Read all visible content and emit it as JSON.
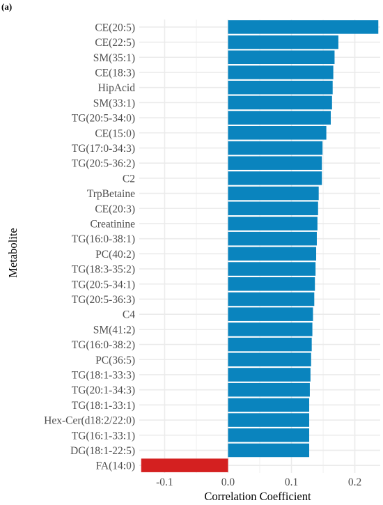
{
  "panel_label": "(a)",
  "chart_data": {
    "type": "bar",
    "orientation": "horizontal",
    "title": "",
    "xlabel": "Correlation Coefficient",
    "ylabel": "Metabolite",
    "xlim": [
      -0.14,
      0.24
    ],
    "xticks": [
      -0.1,
      0.0,
      0.1,
      0.2
    ],
    "xtick_labels": [
      "-0.1",
      "0.0",
      "0.1",
      "0.2"
    ],
    "grid": true,
    "legend": "none",
    "colors": {
      "positive": "#0a84be",
      "negative": "#d42020",
      "grid": "#ebebeb"
    },
    "categories": [
      "CE(20:5)",
      "CE(22:5)",
      "SM(35:1)",
      "CE(18:3)",
      "HipAcid",
      "SM(33:1)",
      "TG(20:5-34:0)",
      "CE(15:0)",
      "TG(17:0-34:3)",
      "TG(20:5-36:2)",
      "C2",
      "TrpBetaine",
      "CE(20:3)",
      "Creatinine",
      "TG(16:0-38:1)",
      "PC(40:2)",
      "TG(18:3-35:2)",
      "TG(20:5-34:1)",
      "TG(20:5-36:3)",
      "C4",
      "SM(41:2)",
      "TG(16:0-38:2)",
      "PC(36:5)",
      "TG(18:1-33:3)",
      "TG(20:1-34:3)",
      "TG(18:1-33:1)",
      "Hex-Cer(d18:2/22:0)",
      "TG(16:1-33:1)",
      "DG(18:1-22:5)",
      "FA(14:0)"
    ],
    "values": [
      0.237,
      0.174,
      0.168,
      0.166,
      0.165,
      0.164,
      0.162,
      0.155,
      0.149,
      0.148,
      0.148,
      0.143,
      0.142,
      0.141,
      0.14,
      0.139,
      0.138,
      0.137,
      0.136,
      0.134,
      0.133,
      0.132,
      0.131,
      0.13,
      0.129,
      0.128,
      0.128,
      0.128,
      0.128,
      -0.137
    ]
  }
}
